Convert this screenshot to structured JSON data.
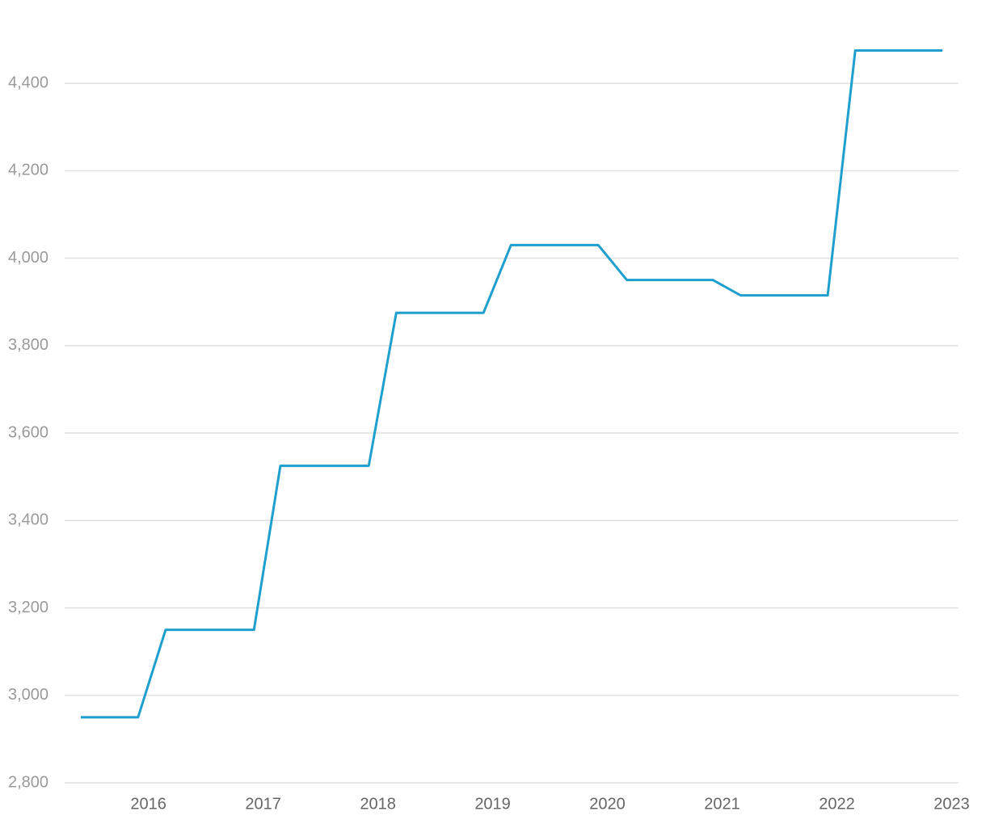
{
  "chart_data": {
    "type": "line",
    "x": [
      2015.41,
      2015.91,
      2016.15,
      2016.92,
      2017.15,
      2017.92,
      2018.16,
      2018.92,
      2019.16,
      2019.92,
      2020.17,
      2020.92,
      2021.16,
      2021.92,
      2022.16,
      2022.92
    ],
    "series": [
      {
        "color": "#1f9fce",
        "values": [
          2950,
          2950,
          3150,
          3150,
          3525,
          3525,
          3875,
          3875,
          4030,
          4030,
          3950,
          3950,
          3915,
          3915,
          4475,
          4475
        ]
      }
    ],
    "xlim": [
      2015.27,
      2023.06
    ],
    "xticks": [
      2016,
      2017,
      2018,
      2019,
      2020,
      2021,
      2022,
      2023
    ],
    "ylim": [
      2800,
      4500
    ],
    "yticks": [
      {
        "value": 2800,
        "label": "2,800"
      },
      {
        "value": 3000,
        "label": "3,000"
      },
      {
        "value": 3200,
        "label": "3,200"
      },
      {
        "value": 3400,
        "label": "3,400"
      },
      {
        "value": 3600,
        "label": "3,600"
      },
      {
        "value": 3800,
        "label": "3,800"
      },
      {
        "value": 4000,
        "label": "4,000"
      },
      {
        "value": 4200,
        "label": "4,200"
      },
      {
        "value": 4400,
        "label": "4,400"
      }
    ],
    "grid": true
  }
}
